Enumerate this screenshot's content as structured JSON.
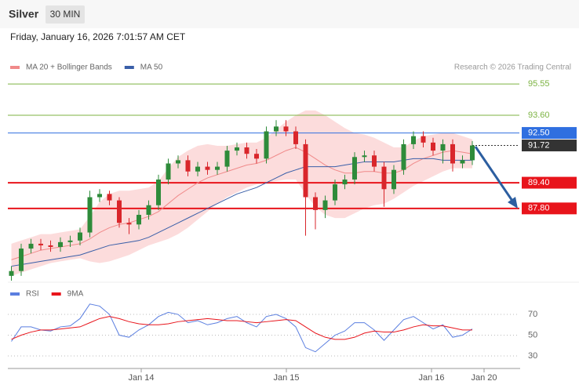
{
  "header": {
    "title": "Silver",
    "interval": "30 MIN",
    "date": "Friday, January 16, 2026 7:01:57 AM CET"
  },
  "chart_data": [
    {
      "type": "candlestick",
      "source": "Research © 2026 Trading Central",
      "x": [
        0,
        1,
        2,
        3,
        4,
        5,
        6,
        7,
        8,
        9,
        10,
        11,
        12,
        13,
        14,
        15,
        16,
        17,
        18,
        19,
        20,
        21,
        22,
        23,
        24,
        25,
        26,
        27,
        28,
        29,
        30,
        31,
        32,
        33,
        34,
        35,
        36,
        37,
        38,
        39,
        40,
        41,
        42,
        43,
        44,
        45,
        46,
        47
      ],
      "xlim": [
        -0.2,
        51.8
      ],
      "ylim": [
        83.3,
        97.85
      ],
      "open": [
        83.6,
        83.9,
        85.3,
        85.6,
        85.5,
        85.4,
        85.7,
        85.8,
        86.3,
        88.5,
        88.7,
        88.3,
        86.9,
        86.8,
        87.4,
        88.0,
        89.6,
        90.6,
        90.8,
        90.1,
        90.4,
        90.2,
        90.4,
        91.4,
        91.6,
        91.2,
        90.9,
        92.6,
        92.9,
        92.6,
        91.8,
        88.5,
        87.7,
        88.3,
        89.3,
        89.6,
        91.0,
        91.1,
        90.4,
        89.0,
        90.2,
        91.8,
        92.3,
        91.9,
        91.4,
        91.8,
        90.6,
        90.8
      ],
      "high": [
        84.2,
        85.6,
        85.9,
        85.9,
        85.8,
        86.0,
        86.1,
        86.6,
        88.9,
        89.0,
        88.9,
        88.5,
        87.2,
        87.7,
        88.3,
        89.9,
        90.9,
        91.1,
        91.1,
        90.7,
        90.7,
        90.7,
        91.7,
        91.9,
        91.9,
        91.5,
        92.9,
        93.3,
        93.3,
        92.9,
        92.1,
        88.8,
        88.6,
        89.6,
        89.9,
        91.3,
        91.4,
        91.4,
        90.7,
        90.5,
        92.1,
        92.6,
        92.6,
        92.2,
        92.1,
        92.1,
        91.1,
        92.0
      ],
      "low": [
        83.3,
        83.6,
        85.0,
        85.2,
        85.1,
        85.1,
        85.4,
        85.5,
        86.0,
        88.2,
        88.0,
        86.6,
        86.2,
        86.5,
        87.1,
        87.7,
        89.3,
        90.3,
        89.8,
        89.8,
        89.9,
        89.9,
        90.1,
        91.1,
        90.9,
        90.6,
        90.6,
        92.3,
        92.3,
        91.5,
        86.1,
        86.5,
        87.2,
        88.0,
        89.0,
        89.3,
        90.7,
        90.1,
        87.9,
        88.7,
        89.9,
        91.5,
        91.6,
        91.1,
        90.6,
        90.1,
        90.3,
        90.5
      ],
      "close": [
        83.9,
        85.3,
        85.6,
        85.5,
        85.4,
        85.7,
        85.8,
        86.3,
        88.5,
        88.7,
        88.3,
        86.9,
        86.8,
        87.4,
        88.0,
        89.6,
        90.6,
        90.8,
        90.1,
        90.4,
        90.2,
        90.4,
        91.4,
        91.6,
        91.2,
        90.9,
        92.6,
        92.9,
        92.6,
        91.8,
        88.5,
        87.7,
        88.3,
        89.3,
        89.6,
        91.0,
        91.1,
        90.4,
        89.0,
        90.2,
        91.8,
        92.3,
        91.9,
        91.4,
        91.8,
        90.6,
        90.8,
        91.72
      ],
      "up_color": "#2e8b3a",
      "down_color": "#d9262b",
      "series": [
        {
          "name": "MA 20 + Bollinger Bands",
          "color": "#f08a8a",
          "band_color": "#fbd3d3",
          "values": [
            84.6,
            84.8,
            85.0,
            85.2,
            85.3,
            85.4,
            85.5,
            85.6,
            85.9,
            86.3,
            86.6,
            86.8,
            86.9,
            87.1,
            87.3,
            87.6,
            88.1,
            88.6,
            89.0,
            89.4,
            89.7,
            89.9,
            90.1,
            90.3,
            90.5,
            90.6,
            90.8,
            91.1,
            91.4,
            91.6,
            91.3,
            90.9,
            90.5,
            90.2,
            90.0,
            90.0,
            90.1,
            90.1,
            90.0,
            90.0,
            90.2,
            90.6,
            90.9,
            91.1,
            91.3,
            91.4,
            91.3,
            91.2
          ],
          "upper": [
            85.6,
            85.8,
            86.0,
            86.2,
            86.2,
            86.3,
            86.4,
            86.5,
            87.3,
            88.2,
            88.7,
            88.9,
            88.9,
            89.0,
            89.1,
            89.5,
            90.3,
            91.0,
            91.4,
            91.7,
            91.8,
            91.7,
            91.7,
            91.8,
            91.9,
            91.9,
            92.2,
            92.7,
            93.2,
            93.6,
            93.9,
            93.9,
            93.6,
            93.2,
            92.8,
            92.5,
            92.4,
            92.2,
            91.9,
            91.6,
            91.6,
            92.0,
            92.3,
            92.4,
            92.5,
            92.5,
            92.3,
            92.1
          ],
          "lower": [
            83.6,
            83.8,
            84.0,
            84.2,
            84.4,
            84.5,
            84.6,
            84.7,
            84.5,
            84.4,
            84.5,
            84.7,
            84.9,
            85.2,
            85.5,
            85.7,
            85.9,
            86.2,
            86.6,
            87.1,
            87.6,
            88.1,
            88.5,
            88.8,
            89.1,
            89.3,
            89.4,
            89.5,
            89.6,
            89.6,
            88.7,
            87.9,
            87.4,
            87.2,
            87.2,
            87.5,
            87.8,
            88.0,
            88.1,
            88.4,
            88.8,
            89.2,
            89.5,
            89.8,
            90.1,
            90.3,
            90.3,
            90.3
          ]
        },
        {
          "name": "MA 50",
          "color": "#3a5fa8",
          "values": [
            84.2,
            84.3,
            84.4,
            84.5,
            84.6,
            84.7,
            84.8,
            84.9,
            85.1,
            85.3,
            85.5,
            85.6,
            85.7,
            85.8,
            86.0,
            86.3,
            86.6,
            86.9,
            87.2,
            87.5,
            87.8,
            88.1,
            88.4,
            88.7,
            88.9,
            89.1,
            89.4,
            89.7,
            90.0,
            90.2,
            90.4,
            90.4,
            90.4,
            90.4,
            90.5,
            90.6,
            90.7,
            90.7,
            90.7,
            90.7,
            90.8,
            90.9,
            90.9,
            90.9,
            90.8,
            90.8,
            90.8,
            90.8
          ]
        }
      ],
      "levels": [
        {
          "value": 95.55,
          "color": "#7cb342",
          "line": "thin",
          "badge": false
        },
        {
          "value": 93.6,
          "label": "93.60",
          "color": "#7cb342",
          "line": "thin",
          "badge": false
        },
        {
          "value": 92.5,
          "label": "92.50",
          "color": "#2f6fe0",
          "line": "thin",
          "badge": true
        },
        {
          "value": 91.72,
          "color": "#333333",
          "line": "dotted",
          "badge": true
        },
        {
          "value": 89.4,
          "label": "89.40",
          "color": "#e8141b",
          "line": "thick",
          "badge": true
        },
        {
          "value": 87.8,
          "label": "87.80",
          "color": "#e8141b",
          "line": "thick",
          "badge": true
        }
      ]
    },
    {
      "type": "line",
      "ylim": [
        21.7,
        87.4
      ],
      "yticks": [
        30,
        50,
        70
      ],
      "grid": true,
      "xticks": [
        {
          "value": 13.24,
          "label": "Jan 14"
        },
        {
          "value": 28.04,
          "label": "Jan 15"
        },
        {
          "value": 42.84,
          "label": "Jan 16"
        },
        {
          "value": 48.2,
          "label": "Jan 20"
        }
      ],
      "series": [
        {
          "name": "RSI",
          "color": "#5b7fe0",
          "values": [
            44,
            58,
            58,
            55,
            54,
            58,
            59,
            66,
            80,
            78,
            70,
            50,
            48,
            55,
            60,
            68,
            72,
            70,
            62,
            64,
            60,
            62,
            66,
            68,
            62,
            58,
            68,
            70,
            66,
            58,
            38,
            34,
            42,
            50,
            54,
            62,
            62,
            55,
            45,
            55,
            65,
            68,
            62,
            56,
            60,
            48,
            50,
            56
          ]
        },
        {
          "name": "9MA",
          "color": "#e8141b",
          "values": [
            46,
            50,
            53,
            55,
            55,
            56,
            57,
            58,
            62,
            66,
            68,
            66,
            63,
            61,
            60,
            60,
            61,
            63,
            64,
            65,
            66,
            65,
            64,
            64,
            63,
            62,
            63,
            64,
            65,
            64,
            58,
            52,
            48,
            46,
            46,
            48,
            52,
            54,
            53,
            53,
            55,
            58,
            60,
            59,
            59,
            57,
            55,
            55
          ]
        }
      ]
    }
  ]
}
